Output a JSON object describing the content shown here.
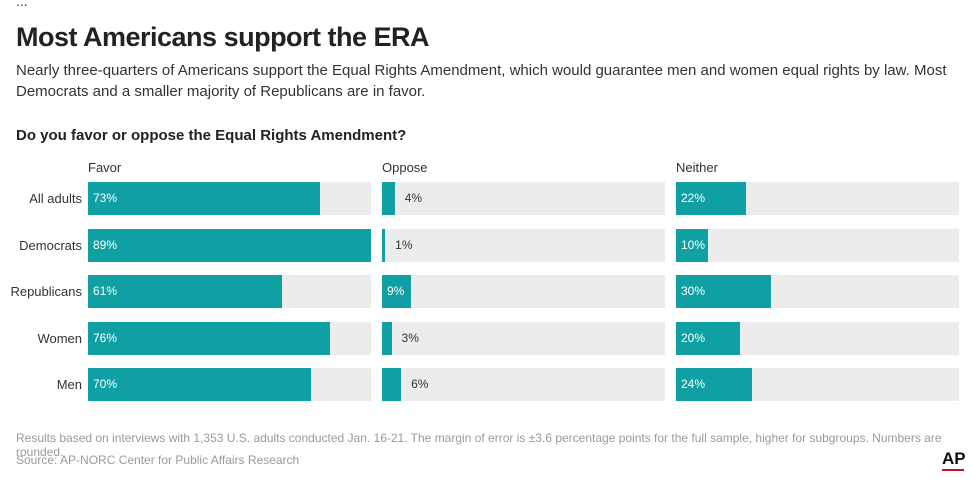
{
  "header": {
    "cut_line": "...",
    "title": "Most Americans support the ERA",
    "subtitle": "Nearly three-quarters of Americans support the Equal Rights Amendment, which would guarantee men and women equal rights by law. Most Democrats and a smaller majority of Republicans are in favor."
  },
  "chart_data": {
    "type": "bar",
    "title": "Do you favor or oppose the Equal Rights Amendment?",
    "categories": [
      "All adults",
      "Democrats",
      "Republicans",
      "Women",
      "Men"
    ],
    "series": [
      {
        "name": "Favor",
        "values": [
          73,
          89,
          61,
          76,
          70
        ],
        "labels": [
          "73%",
          "89%",
          "61%",
          "76%",
          "70%"
        ]
      },
      {
        "name": "Oppose",
        "values": [
          4,
          1,
          9,
          3,
          6
        ],
        "labels": [
          "4%",
          "1%",
          "9%",
          "3%",
          "6%"
        ]
      },
      {
        "name": "Neither",
        "values": [
          22,
          10,
          30,
          20,
          24
        ],
        "labels": [
          "22%",
          "10%",
          "30%",
          "20%",
          "24%"
        ]
      }
    ],
    "xlim": [
      0,
      89
    ],
    "bar_color": "#10a0a4",
    "track_color": "#ececec"
  },
  "footer": {
    "note": "Results based on interviews with 1,353 U.S. adults conducted Jan. 16-21. The margin of error is ±3.6 percentage points for the full sample, higher for subgroups. Numbers are rounded.",
    "source": "Source: AP-NORC Center for Public Affairs Research",
    "logo": "AP"
  }
}
